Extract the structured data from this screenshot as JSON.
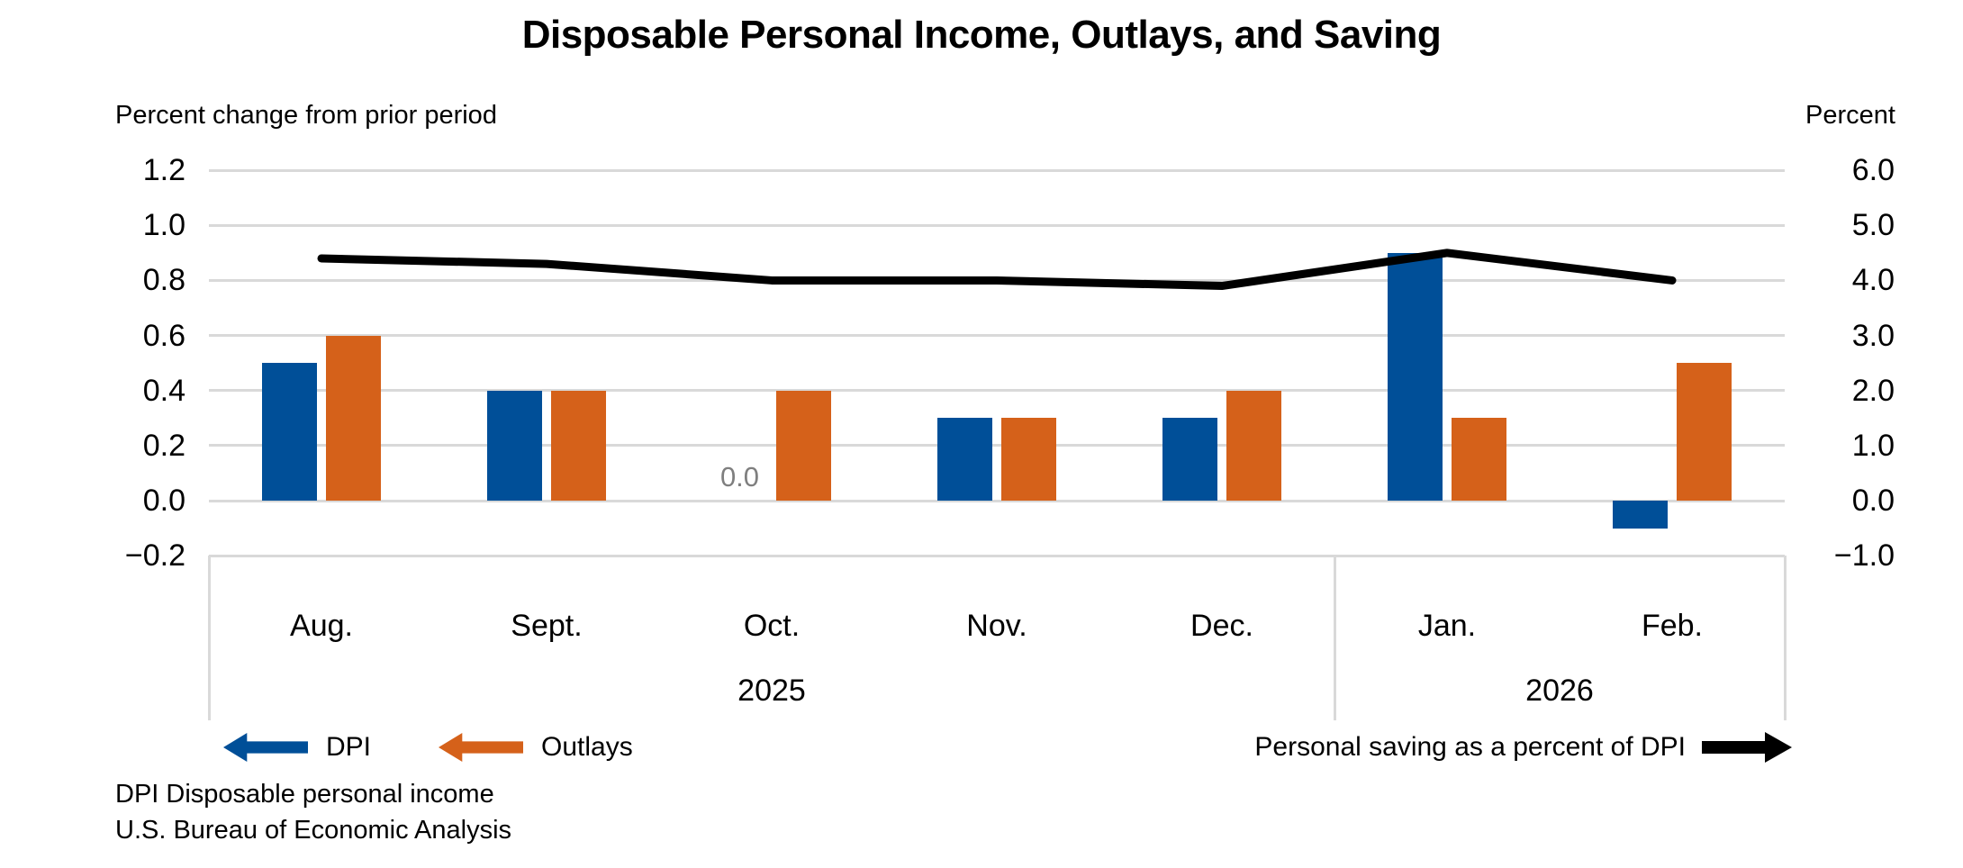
{
  "title": "Disposable Personal Income, Outlays, and Saving",
  "chart_data": {
    "type": "bar+line combo (dual axis)",
    "categories": [
      "Aug.",
      "Sept.",
      "Oct.",
      "Nov.",
      "Dec.",
      "Jan.",
      "Feb."
    ],
    "year_groups": [
      {
        "label": "2025",
        "from": 0,
        "to": 4
      },
      {
        "label": "2026",
        "from": 5,
        "to": 6
      }
    ],
    "left_axis": {
      "caption": "Percent change from prior period",
      "tick_labels": [
        "1.2",
        "1.0",
        "0.8",
        "0.6",
        "0.4",
        "0.2",
        "0.0",
        "−0.2"
      ],
      "min": -0.2,
      "max": 1.2
    },
    "right_axis": {
      "caption": "Percent",
      "tick_labels": [
        "6.0",
        "5.0",
        "4.0",
        "3.0",
        "2.0",
        "1.0",
        "0.0",
        "−1.0"
      ],
      "min": -1.0,
      "max": 6.0
    },
    "grid": true,
    "grid_color": "#d9d9d9",
    "zero_label_color": "#7f7f7f",
    "legend_position": "bottom",
    "series": [
      {
        "name": "DPI",
        "type": "bar",
        "axis": "left",
        "color": "#004f98",
        "values": [
          0.5,
          0.4,
          0.0,
          0.3,
          0.3,
          0.9,
          -0.1
        ],
        "zero_shown_as_label": true,
        "zero_label": "0.0"
      },
      {
        "name": "Outlays",
        "type": "bar",
        "axis": "left",
        "color": "#d5611a",
        "values": [
          0.6,
          0.4,
          0.4,
          0.3,
          0.4,
          0.3,
          0.5
        ]
      },
      {
        "name": "Personal saving as a percent of DPI",
        "type": "line",
        "axis": "right",
        "color": "#000000",
        "values": [
          4.4,
          4.3,
          4.0,
          4.0,
          3.9,
          4.5,
          4.0
        ]
      }
    ]
  },
  "footnotes": [
    "DPI Disposable personal income",
    "U.S. Bureau of Economic Analysis"
  ]
}
